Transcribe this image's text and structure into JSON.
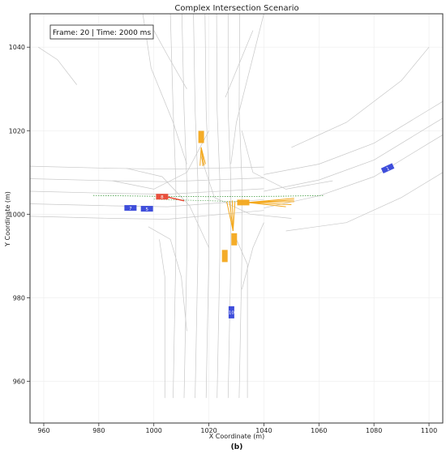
{
  "chart_data": {
    "type": "scatter",
    "title": "Complex Intersection Scenario",
    "xlabel": "X Coordinate (m)",
    "ylabel": "Y Coordinate (m)",
    "xlim": [
      955,
      1105
    ],
    "ylim": [
      950,
      1048
    ],
    "xticks": [
      960,
      980,
      1000,
      1020,
      1040,
      1060,
      1080,
      1100
    ],
    "yticks": [
      960,
      980,
      1000,
      1020,
      1040
    ],
    "grid": true,
    "caption": "(b)",
    "annotation": "Frame: 20 | Time: 2000 ms",
    "colors": {
      "ego": "#e8412c",
      "agent": "#2f3fd8",
      "predicted": "#f3a81c",
      "road": "#c8c8c8",
      "route": "#3c9a3c"
    },
    "vehicles": [
      {
        "id": "8",
        "group": "ego",
        "x": 1003,
        "y": 1004.2,
        "heading_deg": 0
      },
      {
        "id": "7",
        "group": "agent",
        "x": 991.5,
        "y": 1001.5,
        "heading_deg": 0
      },
      {
        "id": "5",
        "group": "agent",
        "x": 997.5,
        "y": 1001.3,
        "heading_deg": 0
      },
      {
        "id": "1",
        "group": "agent",
        "x": 1085,
        "y": 1011,
        "heading_deg": 25
      },
      {
        "id": "10",
        "group": "agent",
        "x": 1028.2,
        "y": 976.5,
        "heading_deg": 90
      },
      {
        "id": "",
        "group": "predicted",
        "x": 1017.2,
        "y": 1018.5,
        "heading_deg": 90
      },
      {
        "id": "",
        "group": "predicted",
        "x": 1032.5,
        "y": 1002.8,
        "heading_deg": 0
      },
      {
        "id": "",
        "group": "predicted",
        "x": 1029.2,
        "y": 994,
        "heading_deg": 90
      },
      {
        "id": "",
        "group": "predicted",
        "x": 1025.8,
        "y": 990,
        "heading_deg": 90
      }
    ]
  }
}
